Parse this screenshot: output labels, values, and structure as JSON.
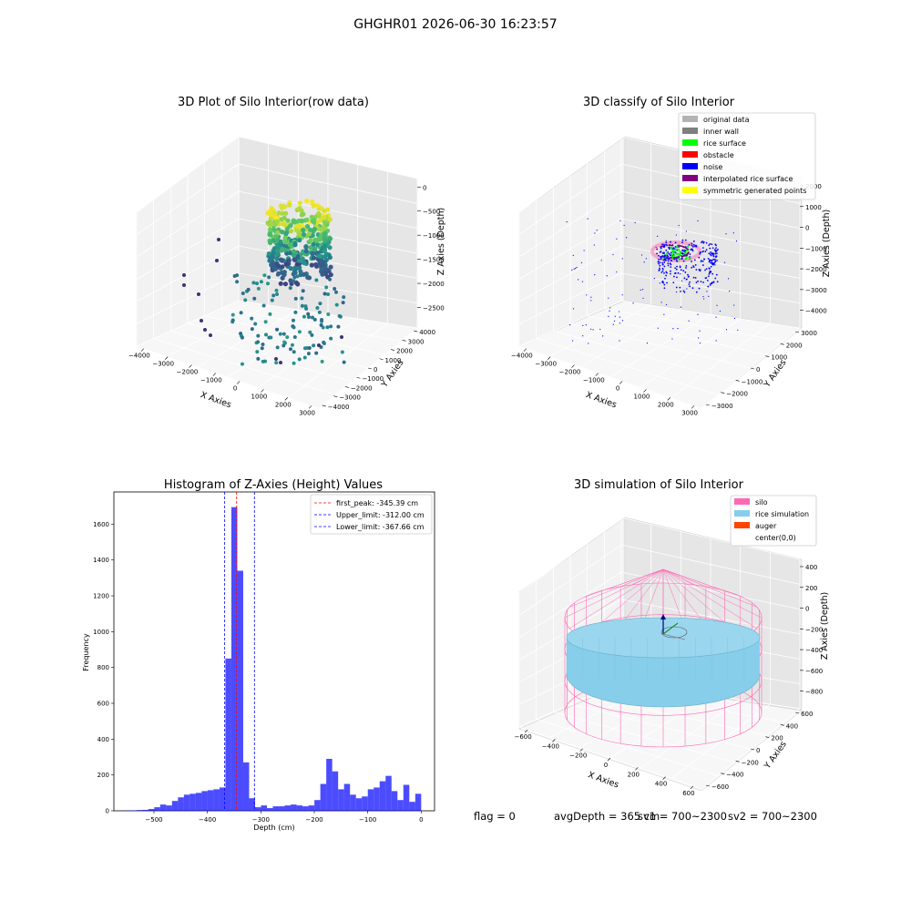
{
  "suptitle": "GHGHR01 2026-06-30 16:23:57",
  "panels": {
    "raw": {
      "title": "3D Plot of Silo Interior(row data)",
      "xlabel": "X Axies",
      "ylabel": "Y Axies",
      "zlabel": "Z Axies (Depth)",
      "x_ticks": [
        "−4000",
        "−3000",
        "−2000",
        "−1000",
        "0",
        "1000",
        "2000",
        "3000"
      ],
      "y_ticks": [
        "−4000",
        "−3000",
        "−2000",
        "−1000",
        "0",
        "1000",
        "2000",
        "3000",
        "4000"
      ],
      "z_ticks": [
        "0",
        "−500",
        "−1000",
        "−1500",
        "−2000",
        "−2500"
      ]
    },
    "classify": {
      "title": "3D classify of Silo Interior",
      "xlabel": "X Axies",
      "ylabel": "Y Axies",
      "zlabel": "Z Axies (Depth)",
      "x_ticks": [
        "−4000",
        "−3000",
        "−2000",
        "−1000",
        "0",
        "1000",
        "2000",
        "3000"
      ],
      "y_ticks": [
        "−3000",
        "−2000",
        "−1000",
        "0",
        "1000",
        "2000",
        "3000"
      ],
      "z_ticks": [
        "2000",
        "1000",
        "0",
        "−1000",
        "−2000",
        "−3000",
        "−4000"
      ],
      "legend": [
        {
          "label": "original data",
          "color": "#b3b3b3"
        },
        {
          "label": "inner wall",
          "color": "#7f7f7f"
        },
        {
          "label": "rice surface",
          "color": "#00ff00"
        },
        {
          "label": "obstacle",
          "color": "#ff0000"
        },
        {
          "label": "noise",
          "color": "#0000ff"
        },
        {
          "label": "interpolated rice surface",
          "color": "#800080"
        },
        {
          "label": "symmetric generated points",
          "color": "#ffff00"
        }
      ]
    },
    "hist": {
      "title": "Histogram of Z-Axies (Height) Values",
      "xlabel": "Depth (cm)",
      "ylabel": "Frequency",
      "legend": [
        {
          "label": "first_peak: -345.39 cm",
          "color": "#ff0000"
        },
        {
          "label": "Upper_limit: -312.00 cm",
          "color": "#0000ff"
        },
        {
          "label": "Lower_limit: -367.66 cm",
          "color": "#0000ff"
        }
      ]
    },
    "sim": {
      "title": "3D simulation of Silo Interior",
      "xlabel": "X Axies",
      "ylabel": "Y Axies",
      "zlabel": "Z Axies (Depth)",
      "x_ticks": [
        "−600",
        "−400",
        "−200",
        "0",
        "200",
        "400",
        "600"
      ],
      "y_ticks": [
        "−600",
        "−400",
        "−200",
        "0",
        "200",
        "400",
        "600"
      ],
      "z_ticks": [
        "400",
        "200",
        "0",
        "−200",
        "−400",
        "−600",
        "−800"
      ],
      "legend": [
        {
          "label": "silo",
          "color": "#ff69b4"
        },
        {
          "label": "rice simulation",
          "color": "#87ceeb"
        },
        {
          "label": "auger",
          "color": "#ff4500"
        },
        {
          "label": "center(0,0)",
          "color": "#ffffff"
        }
      ]
    }
  },
  "footer": {
    "flag": "flag = 0",
    "avg_depth": "avgDepth = 365 cm",
    "sv1": "sv1 = 700~2300",
    "sv2": "sv2 = 700~2300"
  },
  "chart_data": [
    {
      "type": "scatter",
      "title": "3D Plot of Silo Interior(row data)",
      "xlabel": "X Axies",
      "ylabel": "Y Axies",
      "zlabel": "Z Axies (Depth)",
      "xlim": [
        -4000,
        3000
      ],
      "ylim": [
        -4000,
        4000
      ],
      "zlim": [
        -2800,
        0
      ],
      "colormap": "viridis",
      "grid": true
    },
    {
      "type": "scatter",
      "title": "3D classify of Silo Interior",
      "xlabel": "X Axies",
      "ylabel": "Y Axies",
      "zlabel": "Z Axies (Depth)",
      "xlim": [
        -4000,
        3000
      ],
      "ylim": [
        -3000,
        3000
      ],
      "zlim": [
        -4000,
        2000
      ],
      "legend_position": "top-right",
      "grid": true
    },
    {
      "type": "bar",
      "title": "Histogram of Z-Axies (Height) Values",
      "xlabel": "Depth (cm)",
      "ylabel": "Frequency",
      "xlim": [
        -575,
        25
      ],
      "ylim": [
        0,
        1780
      ],
      "x_ticks": [
        -500,
        -400,
        -300,
        -200,
        -100,
        0
      ],
      "y_ticks": [
        0,
        200,
        400,
        600,
        800,
        1000,
        1200,
        1400,
        1600
      ],
      "bin_width": 11.1,
      "bin_start": -555,
      "values": [
        2,
        2,
        4,
        5,
        10,
        20,
        35,
        30,
        55,
        75,
        90,
        95,
        100,
        110,
        115,
        120,
        130,
        850,
        1695,
        1340,
        270,
        70,
        20,
        30,
        15,
        25,
        25,
        30,
        35,
        30,
        25,
        30,
        60,
        150,
        290,
        220,
        120,
        150,
        90,
        70,
        80,
        120,
        130,
        165,
        195,
        110,
        60,
        145,
        50,
        95
      ],
      "bar_color": "#0000ff",
      "vlines": [
        {
          "name": "first_peak",
          "x": -345.39,
          "color": "#ff0000"
        },
        {
          "name": "Upper_limit",
          "x": -312.0,
          "color": "#0000ff"
        },
        {
          "name": "Lower_limit",
          "x": -367.66,
          "color": "#0000ff"
        }
      ],
      "legend_position": "top-right"
    },
    {
      "type": "scatter",
      "title": "3D simulation of Silo Interior",
      "xlabel": "X Axies",
      "ylabel": "Y Axies",
      "zlabel": "Z Axies (Depth)",
      "xlim": [
        -700,
        700
      ],
      "ylim": [
        -700,
        700
      ],
      "zlim": [
        -900,
        500
      ],
      "legend_position": "top-right",
      "grid": true
    }
  ]
}
